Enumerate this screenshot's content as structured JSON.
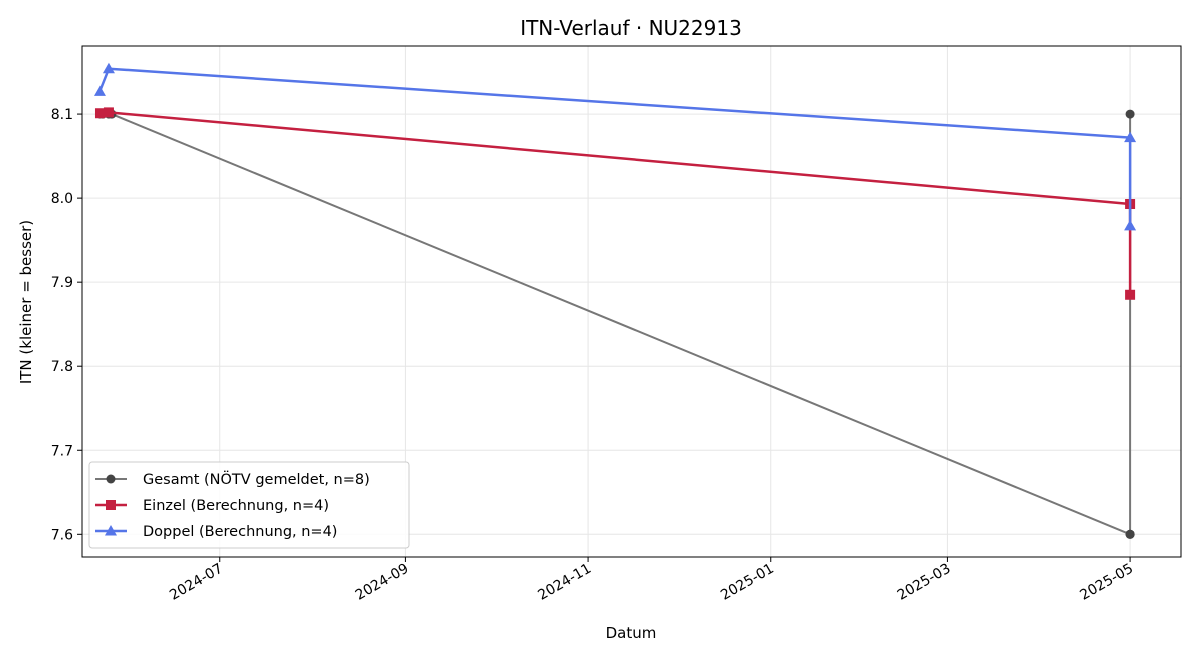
{
  "chart_data": {
    "type": "line",
    "title": "ITN-Verlauf · NU22913",
    "xlabel": "Datum",
    "ylabel": "ITN  (kleiner = besser)",
    "x_axis": "date",
    "xlim": [
      "2024-05-16",
      "2025-05-18"
    ],
    "ylim": [
      7.573,
      8.181
    ],
    "x_ticks": [
      "2024-07-01",
      "2024-09-01",
      "2024-11-01",
      "2025-01-01",
      "2025-03-01",
      "2025-05-01"
    ],
    "x_tick_labels": [
      "2024-07",
      "2024-09",
      "2024-11",
      "2025-01",
      "2025-03",
      "2025-05"
    ],
    "y_ticks": [
      7.6,
      7.7,
      7.8,
      7.9,
      8.0,
      8.1
    ],
    "y_tick_labels": [
      "7.6",
      "7.7",
      "7.8",
      "7.9",
      "8.0",
      "8.1"
    ],
    "grid": true,
    "legend_position": "lower-left",
    "series": [
      {
        "name": "Gesamt (NÖTV gemeldet, n=8)",
        "color": "#777777",
        "marker": "circle",
        "points": [
          {
            "x": "2024-05-22",
            "y": 8.1
          },
          {
            "x": "2024-05-23",
            "y": 8.1
          },
          {
            "x": "2024-05-25",
            "y": 8.1
          },
          {
            "x": "2024-05-26",
            "y": 8.1
          },
          {
            "x": "2025-05-01",
            "y": 7.6
          },
          {
            "x": "2025-05-01",
            "y": 7.6
          },
          {
            "x": "2025-05-01",
            "y": 8.1
          },
          {
            "x": "2025-05-01",
            "y": 7.6
          }
        ]
      },
      {
        "name": "Einzel (Berechnung, n=4)",
        "color": "#c42040",
        "marker": "square",
        "points": [
          {
            "x": "2024-05-22",
            "y": 8.101
          },
          {
            "x": "2024-05-25",
            "y": 8.102
          },
          {
            "x": "2025-05-01",
            "y": 7.993
          },
          {
            "x": "2025-05-01",
            "y": 7.885
          }
        ]
      },
      {
        "name": "Doppel (Berechnung, n=4)",
        "color": "#5575e8",
        "marker": "triangle",
        "points": [
          {
            "x": "2024-05-22",
            "y": 8.127
          },
          {
            "x": "2024-05-25",
            "y": 8.154
          },
          {
            "x": "2025-05-01",
            "y": 8.072
          },
          {
            "x": "2025-05-01",
            "y": 7.967
          }
        ]
      }
    ]
  }
}
